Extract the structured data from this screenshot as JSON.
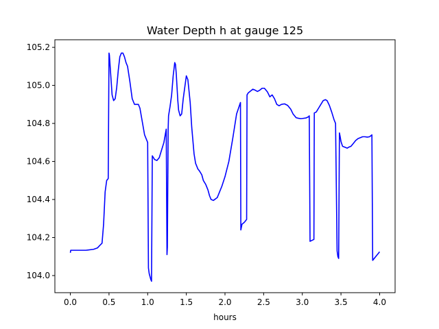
{
  "chart_data": {
    "type": "line",
    "title": "Water Depth h at gauge 125",
    "xlabel": "hours",
    "ylabel": "",
    "xlim": [
      -0.2,
      4.2
    ],
    "ylim": [
      103.91,
      105.24
    ],
    "xticks": [
      0.0,
      0.5,
      1.0,
      1.5,
      2.0,
      2.5,
      3.0,
      3.5,
      4.0
    ],
    "xtick_labels": [
      "0.0",
      "0.5",
      "1.0",
      "1.5",
      "2.0",
      "2.5",
      "3.0",
      "3.5",
      "4.0"
    ],
    "yticks": [
      104.0,
      104.2,
      104.4,
      104.6,
      104.8,
      105.0,
      105.2
    ],
    "ytick_labels": [
      "104.0",
      "104.2",
      "104.4",
      "104.6",
      "104.8",
      "105.0",
      "105.2"
    ],
    "grid": false,
    "series": [
      {
        "color": "#0000ff",
        "x": [
          0.0,
          0.005,
          0.05,
          0.1,
          0.2,
          0.3,
          0.35,
          0.38,
          0.41,
          0.43,
          0.45,
          0.47,
          0.49,
          0.5,
          0.505,
          0.52,
          0.54,
          0.56,
          0.58,
          0.6,
          0.62,
          0.64,
          0.66,
          0.68,
          0.7,
          0.72,
          0.74,
          0.77,
          0.8,
          0.83,
          0.86,
          0.88,
          0.9,
          0.93,
          0.96,
          1.0,
          1.01,
          1.02,
          1.04,
          1.05,
          1.06,
          1.09,
          1.12,
          1.15,
          1.18,
          1.21,
          1.24,
          1.25,
          1.255,
          1.265,
          1.27,
          1.29,
          1.31,
          1.33,
          1.35,
          1.36,
          1.37,
          1.38,
          1.39,
          1.4,
          1.42,
          1.44,
          1.46,
          1.48,
          1.5,
          1.52,
          1.55,
          1.57,
          1.6,
          1.62,
          1.65,
          1.67,
          1.7,
          1.72,
          1.75,
          1.78,
          1.8,
          1.82,
          1.85,
          1.9,
          1.93,
          1.96,
          2.0,
          2.05,
          2.1,
          2.15,
          2.2,
          2.205,
          2.22,
          2.25,
          2.28,
          2.285,
          2.3,
          2.33,
          2.36,
          2.39,
          2.42,
          2.45,
          2.48,
          2.51,
          2.55,
          2.58,
          2.61,
          2.64,
          2.67,
          2.7,
          2.73,
          2.77,
          2.81,
          2.85,
          2.88,
          2.92,
          2.95,
          2.98,
          3.0,
          3.05,
          3.08,
          3.09,
          3.1,
          3.15,
          3.155,
          3.18,
          3.21,
          3.24,
          3.27,
          3.3,
          3.32,
          3.35,
          3.38,
          3.41,
          3.43,
          3.45,
          3.46,
          3.47,
          3.48,
          3.49,
          3.5,
          3.52,
          3.55,
          3.58,
          3.6,
          3.63,
          3.66,
          3.69,
          3.72,
          3.75,
          3.78,
          3.81,
          3.84,
          3.87,
          3.9,
          3.91,
          3.93,
          3.96,
          4.0
        ],
        "values": [
          104.12,
          104.133,
          104.133,
          104.133,
          104.133,
          104.138,
          104.145,
          104.158,
          104.17,
          104.27,
          104.44,
          104.5,
          104.51,
          105.17,
          105.16,
          105.07,
          104.95,
          104.92,
          104.93,
          104.99,
          105.08,
          105.15,
          105.17,
          105.17,
          105.15,
          105.12,
          105.1,
          105.02,
          104.93,
          104.9,
          104.9,
          104.9,
          104.88,
          104.81,
          104.74,
          104.7,
          104.04,
          104.01,
          103.98,
          103.97,
          104.63,
          104.61,
          104.605,
          104.62,
          104.66,
          104.7,
          104.77,
          104.11,
          104.15,
          104.77,
          104.84,
          104.89,
          104.95,
          105.05,
          105.12,
          105.11,
          105.06,
          104.99,
          104.92,
          104.87,
          104.84,
          104.85,
          104.93,
          104.99,
          105.05,
          105.03,
          104.91,
          104.78,
          104.64,
          104.59,
          104.56,
          104.55,
          104.53,
          104.5,
          104.48,
          104.45,
          104.42,
          104.4,
          104.395,
          104.41,
          104.44,
          104.47,
          104.52,
          104.6,
          104.72,
          104.85,
          104.91,
          104.24,
          104.27,
          104.28,
          104.295,
          104.95,
          104.96,
          104.97,
          104.98,
          104.975,
          104.968,
          104.975,
          104.985,
          104.985,
          104.965,
          104.94,
          104.95,
          104.93,
          104.9,
          104.893,
          104.9,
          104.903,
          104.895,
          104.875,
          104.85,
          104.83,
          104.827,
          104.825,
          104.826,
          104.829,
          104.835,
          104.84,
          104.18,
          104.19,
          104.855,
          104.86,
          104.88,
          104.9,
          104.92,
          104.925,
          104.92,
          104.895,
          104.86,
          104.82,
          104.8,
          104.13,
          104.1,
          104.09,
          104.75,
          104.73,
          104.705,
          104.68,
          104.675,
          104.67,
          104.675,
          104.68,
          104.695,
          104.71,
          104.72,
          104.725,
          104.73,
          104.73,
          104.728,
          104.73,
          104.74,
          104.08,
          104.09,
          104.105,
          104.125
        ]
      }
    ]
  }
}
